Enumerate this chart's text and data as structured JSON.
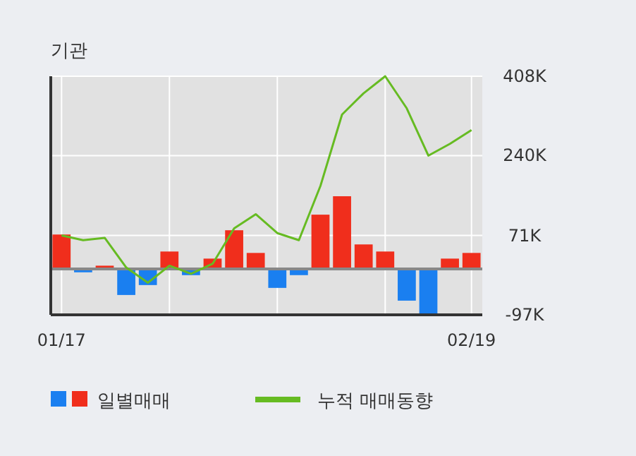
{
  "chart_data": {
    "type": "bar",
    "title": "기관",
    "categories": [
      "01/17",
      null,
      null,
      null,
      null,
      null,
      null,
      null,
      null,
      null,
      null,
      null,
      null,
      null,
      null,
      null,
      null,
      null,
      null,
      "02/19"
    ],
    "series": [
      {
        "name": "일별매매",
        "values": [
          73,
          -7,
          7,
          -55,
          -34,
          37,
          -13,
          22,
          82,
          34,
          -40,
          -13,
          115,
          154,
          52,
          37,
          -67,
          -94,
          22,
          34
        ],
        "colors": [
          "#f02e1c",
          "#1a7ff0",
          "#f02e1c",
          "#1a7ff0",
          "#1a7ff0",
          "#f02e1c",
          "#1a7ff0",
          "#f02e1c",
          "#f02e1c",
          "#f02e1c",
          "#1a7ff0",
          "#1a7ff0",
          "#f02e1c",
          "#f02e1c",
          "#f02e1c",
          "#f02e1c",
          "#1a7ff0",
          "#1a7ff0",
          "#f02e1c",
          "#f02e1c"
        ]
      },
      {
        "name": "누적 매매동향",
        "type": "line",
        "color": "#66bb22",
        "values": [
          71,
          61,
          66,
          3,
          -29,
          7,
          -10,
          11,
          86,
          116,
          76,
          61,
          176,
          327,
          372,
          408,
          340,
          240,
          265,
          294
        ]
      }
    ],
    "ylim": [
      -97,
      408
    ],
    "yticks": [
      {
        "value": -97,
        "label": "-97K"
      },
      {
        "value": 71,
        "label": "71K"
      },
      {
        "value": 240,
        "label": "240K"
      },
      {
        "value": 408,
        "label": "408K"
      }
    ],
    "grid": true,
    "legend": "bottom"
  }
}
